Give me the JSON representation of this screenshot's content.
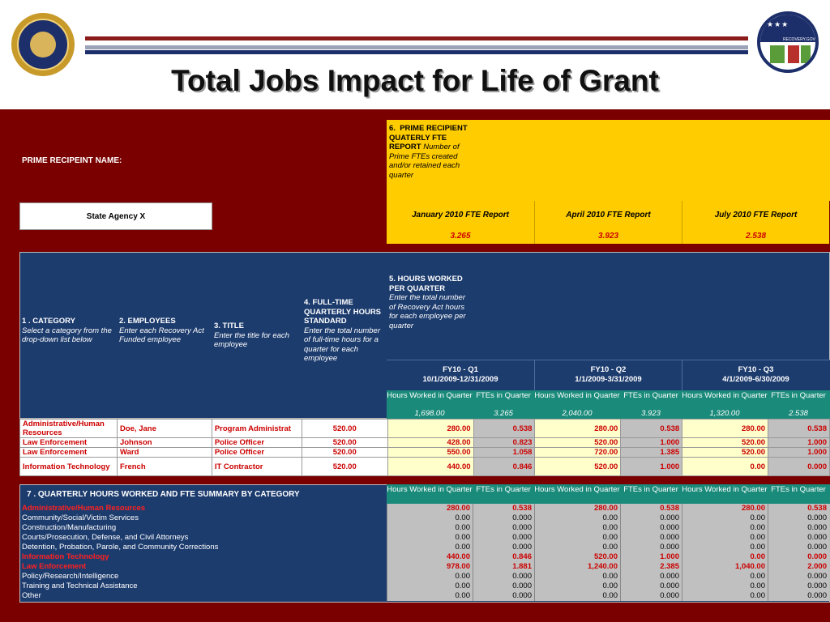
{
  "title": "Total Jobs Impact for Life of Grant",
  "prime_name_label": "PRIME RECIPEINT NAME:",
  "agency": "State Agency X",
  "section6": {
    "num": "6.",
    "title": "PRIME RECIPIENT QUATERLY FTE REPORT",
    "desc": "Number of Prime FTEs created and/or retained each quarter"
  },
  "fte_reports": [
    {
      "label": "January 2010 FTE Report",
      "value": "3.265"
    },
    {
      "label": "April 2010 FTE Report",
      "value": "3.923"
    },
    {
      "label": "July 2010 FTE Report",
      "value": "2.538"
    }
  ],
  "col1": {
    "title": "1 .  CATEGORY",
    "desc": "Select a category from the drop-down list below"
  },
  "col2": {
    "title": "2.  EMPLOYEES",
    "desc": "Enter each Recovery Act Funded employee"
  },
  "col3": {
    "title": "3.  TITLE",
    "desc": "Enter the title for each employee"
  },
  "col4": {
    "title": "4.  FULL-TIME QUARTERLY HOURS STANDARD",
    "desc": "Enter the total number of full-time hours for a quarter for each employee"
  },
  "col5": {
    "title": "5.  HOURS WORKED PER QUARTER",
    "desc": "Enter the total number of Recovery Act hours for each employee per quarter"
  },
  "quarters": [
    {
      "name": "FY10 - Q1",
      "range": "10/1/2009-12/31/2009",
      "hours_total": "1,698.00",
      "fte_total": "3.265"
    },
    {
      "name": "FY10 - Q2",
      "range": "1/1/2009-3/31/2009",
      "hours_total": "2,040.00",
      "fte_total": "3.923"
    },
    {
      "name": "FY10 - Q3",
      "range": "4/1/2009-6/30/2009",
      "hours_total": "1,320.00",
      "fte_total": "2.538"
    }
  ],
  "sub_hours": "Hours Worked in Quarter",
  "sub_fte": "FTEs in Quarter",
  "employees": [
    {
      "category": "Administrative/Human Resources",
      "employee": "Doe, Jane",
      "title": "Program Administrat",
      "standard": "520.00",
      "q": [
        "280.00",
        "0.538",
        "280.00",
        "0.538",
        "280.00",
        "0.538"
      ]
    },
    {
      "category": "Law Enforcement",
      "employee": "Johnson",
      "title": "Police Officer",
      "standard": "520.00",
      "q": [
        "428.00",
        "0.823",
        "520.00",
        "1.000",
        "520.00",
        "1.000"
      ]
    },
    {
      "category": "Law Enforcement",
      "employee": "Ward",
      "title": "Police Officer",
      "standard": "520.00",
      "q": [
        "550.00",
        "1.058",
        "720.00",
        "1.385",
        "520.00",
        "1.000"
      ]
    },
    {
      "category": "Information Technology",
      "employee": "French",
      "title": "IT Contractor",
      "standard": "520.00",
      "q": [
        "440.00",
        "0.846",
        "520.00",
        "1.000",
        "0.00",
        "0.000"
      ]
    }
  ],
  "summary_title": "7 . QUARTERLY HOURS WORKED AND FTE SUMMARY BY CATEGORY",
  "summary": [
    {
      "label": "Administrative/Human Resources",
      "highlight": true,
      "v": [
        "280.00",
        "0.538",
        "280.00",
        "0.538",
        "280.00",
        "0.538"
      ]
    },
    {
      "label": "Community/Social/Victim Services",
      "highlight": false,
      "v": [
        "0.00",
        "0.000",
        "0.00",
        "0.000",
        "0.00",
        "0.000"
      ]
    },
    {
      "label": "Construction/Manufacturing",
      "highlight": false,
      "v": [
        "0.00",
        "0.000",
        "0.00",
        "0.000",
        "0.00",
        "0.000"
      ]
    },
    {
      "label": "Courts/Prosecution, Defense, and Civil Attorneys",
      "highlight": false,
      "v": [
        "0.00",
        "0.000",
        "0.00",
        "0.000",
        "0.00",
        "0.000"
      ]
    },
    {
      "label": "Detention, Probation, Parole, and Community Corrections",
      "highlight": false,
      "v": [
        "0.00",
        "0.000",
        "0.00",
        "0.000",
        "0.00",
        "0.000"
      ]
    },
    {
      "label": "Information Technology",
      "highlight": true,
      "v": [
        "440.00",
        "0.846",
        "520.00",
        "1.000",
        "0.00",
        "0.000"
      ]
    },
    {
      "label": "Law Enforcement",
      "highlight": true,
      "v": [
        "978.00",
        "1.881",
        "1,240.00",
        "2.385",
        "1,040.00",
        "2.000"
      ]
    },
    {
      "label": "Policy/Research/Intelligence",
      "highlight": false,
      "v": [
        "0.00",
        "0.000",
        "0.00",
        "0.000",
        "0.00",
        "0.000"
      ]
    },
    {
      "label": "Training and Technical Assistance",
      "highlight": false,
      "v": [
        "0.00",
        "0.000",
        "0.00",
        "0.000",
        "0.00",
        "0.000"
      ]
    },
    {
      "label": "Other",
      "highlight": false,
      "v": [
        "0.00",
        "0.000",
        "0.00",
        "0.000",
        "0.00",
        "0.000"
      ]
    }
  ],
  "logos": {
    "right_text": "RECOVERY.GOV"
  }
}
